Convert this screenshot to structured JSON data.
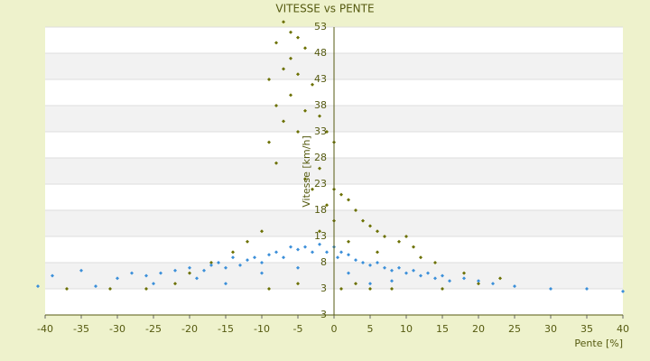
{
  "chart_data": {
    "type": "scatter",
    "title": "VITESSE vs PENTE",
    "x_label": "Pente [%]",
    "y_label": "Vitesse [km/h]",
    "axis_origin_label": "3",
    "xlim": [
      -40,
      40
    ],
    "xticks": [
      -40,
      -35,
      -30,
      -25,
      -20,
      -15,
      -10,
      -5,
      0,
      5,
      10,
      15,
      20,
      25,
      30,
      35,
      40
    ],
    "ylim": [
      -2,
      53
    ],
    "yticks": [
      3,
      8,
      13,
      18,
      23,
      28,
      33,
      38,
      43,
      48,
      53
    ],
    "grid": true,
    "series": [
      {
        "color": "#6b7000",
        "x": [
          -7,
          -6,
          -5,
          -8,
          -4,
          -6,
          -7,
          -5,
          -9,
          -3,
          -6,
          -8,
          -4,
          -2,
          -7,
          -5,
          -9,
          -8,
          -1,
          0,
          -2,
          -4,
          -3,
          0,
          1,
          2,
          3,
          -1,
          4,
          5,
          6,
          0,
          7,
          9,
          10,
          11,
          12,
          14,
          -10,
          -12,
          -14,
          -17,
          -20,
          -22,
          -26,
          -31,
          -37,
          3,
          5,
          8,
          15,
          20,
          23,
          -5,
          -9,
          1,
          2,
          -2,
          6,
          18
        ],
        "values": [
          54,
          52,
          51,
          50,
          49,
          47,
          45,
          44,
          43,
          42,
          40,
          38,
          37,
          36,
          35,
          33,
          31,
          27,
          33,
          31,
          26,
          24,
          22,
          22,
          21,
          20,
          18,
          19,
          16,
          15,
          14,
          16,
          13,
          12,
          13,
          11,
          9,
          8,
          14,
          12,
          10,
          8,
          6,
          4,
          3,
          3,
          3,
          4,
          3,
          3,
          3,
          4,
          5,
          4,
          3,
          3,
          12,
          14,
          10,
          6
        ]
      },
      {
        "color": "#3b8fd9",
        "x": [
          -39,
          -35,
          -33,
          -30,
          -28,
          -26,
          -24,
          -22,
          -20,
          -19,
          -18,
          -17,
          -16,
          -15,
          -14,
          -13,
          -12,
          -11,
          -10,
          -9,
          -8,
          -7,
          -6,
          -5,
          -4,
          -3,
          -2,
          -1,
          0,
          0.5,
          1,
          2,
          3,
          4,
          5,
          6,
          7,
          8,
          9,
          10,
          11,
          12,
          13,
          14,
          15,
          16,
          18,
          20,
          22,
          25,
          30,
          35,
          40,
          -41,
          -25,
          -15,
          -5,
          5,
          2,
          -10,
          8
        ],
        "values": [
          5.5,
          6.5,
          3.5,
          5,
          6,
          5.5,
          6,
          6.5,
          7,
          5,
          6.5,
          7.5,
          8,
          7,
          9,
          7.5,
          8.5,
          9,
          8,
          9.5,
          10,
          9,
          11,
          10.5,
          11,
          10,
          11.5,
          10,
          11,
          9,
          10,
          9.5,
          8.5,
          8,
          7.5,
          8,
          7,
          6.5,
          7,
          6,
          6.5,
          5.5,
          6,
          5,
          5.5,
          4.5,
          5,
          4.5,
          4,
          3.5,
          3,
          3,
          2.5,
          3.5,
          4,
          4,
          7,
          4,
          6,
          6,
          4.5
        ]
      }
    ]
  }
}
